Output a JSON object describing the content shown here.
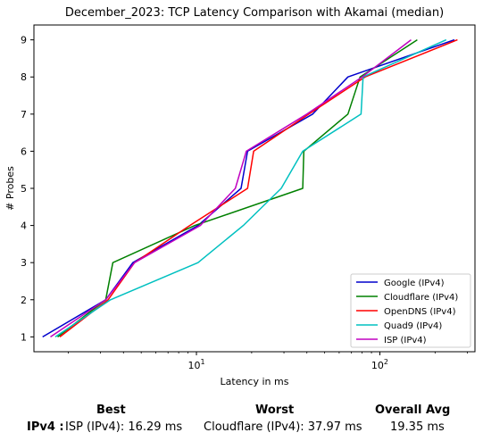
{
  "chart_data": {
    "type": "line",
    "title": "December_2023: TCP Latency Comparison with Akamai (median)",
    "xlabel": "Latency in ms",
    "ylabel": "# Probes",
    "xscale": "log",
    "xlim": [
      1.3,
      330
    ],
    "ylim": [
      0.6,
      9.4
    ],
    "x_ticks": [
      {
        "value": 10,
        "label": "10^1"
      },
      {
        "value": 100,
        "label": "10^2"
      }
    ],
    "y_ticks": [
      1,
      2,
      3,
      4,
      5,
      6,
      7,
      8,
      9
    ],
    "grid": false,
    "legend_position": "lower-right",
    "series": [
      {
        "name": "Google (IPv4)",
        "color": "#0000cc",
        "x": [
          1.45,
          3.2,
          4.5,
          10.2,
          17.5,
          19.0,
          43.0,
          67.0,
          255.0
        ],
        "y": [
          1,
          2,
          3,
          4,
          5,
          6,
          7,
          8,
          9
        ]
      },
      {
        "name": "Cloudflare (IPv4)",
        "color": "#008000",
        "x": [
          1.75,
          3.2,
          3.5,
          9.8,
          38.0,
          38.5,
          67.0,
          78.0,
          160.0
        ],
        "y": [
          1,
          2,
          3,
          4,
          5,
          6,
          7,
          8,
          9
        ]
      },
      {
        "name": "OpenDNS (IPv4)",
        "color": "#ff0000",
        "x": [
          1.8,
          3.3,
          4.6,
          9.2,
          19.0,
          20.5,
          41.0,
          83.0,
          265.0
        ],
        "y": [
          1,
          2,
          3,
          4,
          5,
          6,
          7,
          8,
          9
        ]
      },
      {
        "name": "Quad9 (IPv4)",
        "color": "#00c0c0",
        "x": [
          1.7,
          3.4,
          10.2,
          18.0,
          29.0,
          38.0,
          79.0,
          81.0,
          230.0
        ],
        "y": [
          1,
          2,
          3,
          4,
          5,
          6,
          7,
          8,
          9
        ]
      },
      {
        "name": "ISP (IPv4)",
        "color": "#c000c0",
        "x": [
          1.6,
          3.2,
          4.6,
          10.5,
          16.3,
          18.7,
          40.0,
          80.0,
          148.0
        ],
        "y": [
          1,
          2,
          3,
          4,
          5,
          6,
          7,
          8,
          9
        ]
      }
    ]
  },
  "summary": {
    "headers": {
      "best": "Best",
      "worst": "Worst",
      "avg": "Overall Avg"
    },
    "row_label": "IPv4 :",
    "best": "ISP (IPv4): 16.29 ms",
    "worst": "Cloudflare (IPv4): 37.97 ms",
    "avg": "19.35 ms"
  }
}
